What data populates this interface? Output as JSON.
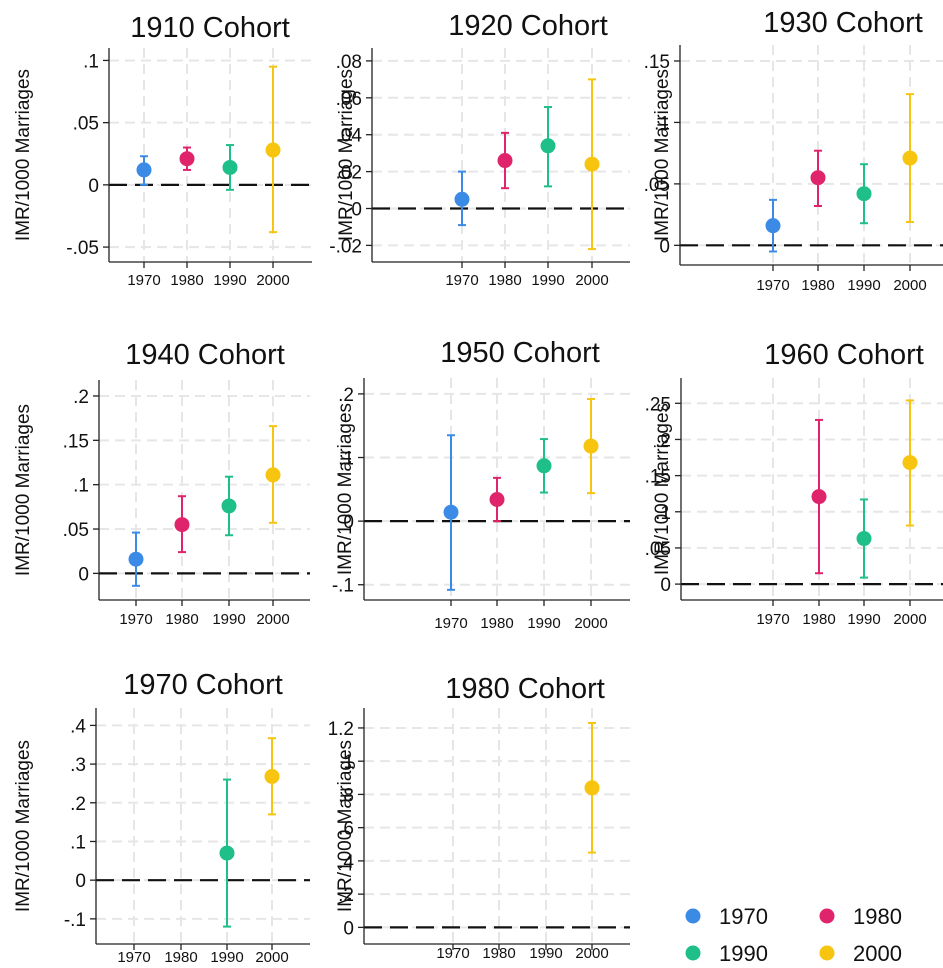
{
  "colors": {
    "1970": "#3b8ae6",
    "1980": "#e0246b",
    "1990": "#1fbf8a",
    "2000": "#f7c40f"
  },
  "legend": [
    {
      "label": "1970",
      "color": "#3b8ae6"
    },
    {
      "label": "1980",
      "color": "#e0246b"
    },
    {
      "label": "1990",
      "color": "#1fbf8a"
    },
    {
      "label": "2000",
      "color": "#f7c40f"
    }
  ],
  "chart_data": [
    {
      "type": "scatter",
      "title": "1910 Cohort",
      "ylabel": "IMR/1000 Marriages",
      "categories": [
        "1970",
        "1980",
        "1990",
        "2000"
      ],
      "ylim": [
        -0.062,
        0.11
      ],
      "yticks": [
        -0.05,
        0,
        0.05,
        0.1
      ],
      "yticklabels": [
        "-.05",
        "0",
        ".05",
        ".1"
      ],
      "points": [
        {
          "x": "1970",
          "y": 0.012,
          "lo": 0.0,
          "hi": 0.023
        },
        {
          "x": "1980",
          "y": 0.021,
          "lo": 0.012,
          "hi": 0.03
        },
        {
          "x": "1990",
          "y": 0.014,
          "lo": -0.004,
          "hi": 0.032
        },
        {
          "x": "2000",
          "y": 0.028,
          "lo": -0.038,
          "hi": 0.095
        }
      ]
    },
    {
      "type": "scatter",
      "title": "1920 Cohort",
      "ylabel": "IMR/1000 Marriages",
      "categories": [
        "1970",
        "1980",
        "1990",
        "2000"
      ],
      "ylim": [
        -0.029,
        0.087
      ],
      "yticks": [
        -0.02,
        0,
        0.02,
        0.04,
        0.06,
        0.08
      ],
      "yticklabels": [
        "-.02",
        "0",
        ".02",
        ".04",
        ".06",
        ".08"
      ],
      "points": [
        {
          "x": "1970",
          "y": 0.005,
          "lo": -0.009,
          "hi": 0.02
        },
        {
          "x": "1980",
          "y": 0.026,
          "lo": 0.011,
          "hi": 0.041
        },
        {
          "x": "1990",
          "y": 0.034,
          "lo": 0.012,
          "hi": 0.055
        },
        {
          "x": "2000",
          "y": 0.024,
          "lo": -0.022,
          "hi": 0.07
        }
      ]
    },
    {
      "type": "scatter",
      "title": "1930 Cohort",
      "ylabel": "IMR/1000 Marriages",
      "categories": [
        "1970",
        "1980",
        "1990",
        "2000"
      ],
      "ylim": [
        -0.016,
        0.163
      ],
      "yticks": [
        0,
        0.05,
        0.1,
        0.15
      ],
      "yticklabels": [
        "0",
        ".05",
        ".1",
        ".15"
      ],
      "points": [
        {
          "x": "1970",
          "y": 0.016,
          "lo": -0.005,
          "hi": 0.037
        },
        {
          "x": "1980",
          "y": 0.055,
          "lo": 0.032,
          "hi": 0.077
        },
        {
          "x": "1990",
          "y": 0.042,
          "lo": 0.018,
          "hi": 0.066
        },
        {
          "x": "2000",
          "y": 0.071,
          "lo": 0.019,
          "hi": 0.123
        }
      ]
    },
    {
      "type": "scatter",
      "title": "1940 Cohort",
      "ylabel": "IMR/1000 Marriages",
      "categories": [
        "1970",
        "1980",
        "1990",
        "2000"
      ],
      "ylim": [
        -0.03,
        0.218
      ],
      "yticks": [
        0,
        0.05,
        0.1,
        0.15,
        0.2
      ],
      "yticklabels": [
        "0",
        ".05",
        ".1",
        ".15",
        ".2"
      ],
      "points": [
        {
          "x": "1970",
          "y": 0.016,
          "lo": -0.014,
          "hi": 0.046
        },
        {
          "x": "1980",
          "y": 0.055,
          "lo": 0.024,
          "hi": 0.087
        },
        {
          "x": "1990",
          "y": 0.076,
          "lo": 0.043,
          "hi": 0.109
        },
        {
          "x": "2000",
          "y": 0.111,
          "lo": 0.057,
          "hi": 0.166
        }
      ]
    },
    {
      "type": "scatter",
      "title": "1950 Cohort",
      "ylabel": "IMR/1000 Marriages",
      "categories": [
        "1970",
        "1980",
        "1990",
        "2000"
      ],
      "ylim": [
        -0.124,
        0.225
      ],
      "yticks": [
        -0.1,
        0,
        0.1,
        0.2
      ],
      "yticklabels": [
        "-.1",
        "0",
        ".1",
        ".2"
      ],
      "points": [
        {
          "x": "1970",
          "y": 0.014,
          "lo": -0.108,
          "hi": 0.135
        },
        {
          "x": "1980",
          "y": 0.034,
          "lo": 0.0,
          "hi": 0.068
        },
        {
          "x": "1990",
          "y": 0.087,
          "lo": 0.045,
          "hi": 0.129
        },
        {
          "x": "2000",
          "y": 0.118,
          "lo": 0.044,
          "hi": 0.192
        }
      ]
    },
    {
      "type": "scatter",
      "title": "1960 Cohort",
      "ylabel": "IMR/1000 Marriages",
      "categories": [
        "1970",
        "1980",
        "1990",
        "2000"
      ],
      "ylim": [
        -0.022,
        0.285
      ],
      "yticks": [
        0,
        0.05,
        0.1,
        0.15,
        0.2,
        0.25
      ],
      "yticklabels": [
        "0",
        ".05",
        ".1",
        ".15",
        ".2",
        ".25"
      ],
      "points": [
        {
          "x": "1980",
          "y": 0.121,
          "lo": 0.015,
          "hi": 0.227
        },
        {
          "x": "1990",
          "y": 0.063,
          "lo": 0.009,
          "hi": 0.117
        },
        {
          "x": "2000",
          "y": 0.168,
          "lo": 0.081,
          "hi": 0.254
        }
      ]
    },
    {
      "type": "scatter",
      "title": "1970 Cohort",
      "ylabel": "IMR/1000 Marriages",
      "categories": [
        "1970",
        "1980",
        "1990",
        "2000"
      ],
      "ylim": [
        -0.165,
        0.445
      ],
      "yticks": [
        -0.1,
        0,
        0.1,
        0.2,
        0.3,
        0.4
      ],
      "yticklabels": [
        "-.1",
        "0",
        ".1",
        ".2",
        ".3",
        ".4"
      ],
      "points": [
        {
          "x": "1990",
          "y": 0.07,
          "lo": -0.12,
          "hi": 0.26
        },
        {
          "x": "2000",
          "y": 0.268,
          "lo": 0.17,
          "hi": 0.367
        }
      ]
    },
    {
      "type": "scatter",
      "title": "1980 Cohort",
      "ylabel": "IMR/1000 Marriages",
      "categories": [
        "1970",
        "1980",
        "1990",
        "2000"
      ],
      "ylim": [
        -0.1,
        1.32
      ],
      "yticks": [
        0,
        0.2,
        0.4,
        0.6,
        0.8,
        1,
        1.2
      ],
      "yticklabels": [
        "0",
        ".2",
        ".4",
        ".6",
        ".8",
        "1",
        "1.2"
      ],
      "points": [
        {
          "x": "2000",
          "y": 0.84,
          "lo": 0.45,
          "hi": 1.23
        }
      ]
    }
  ]
}
